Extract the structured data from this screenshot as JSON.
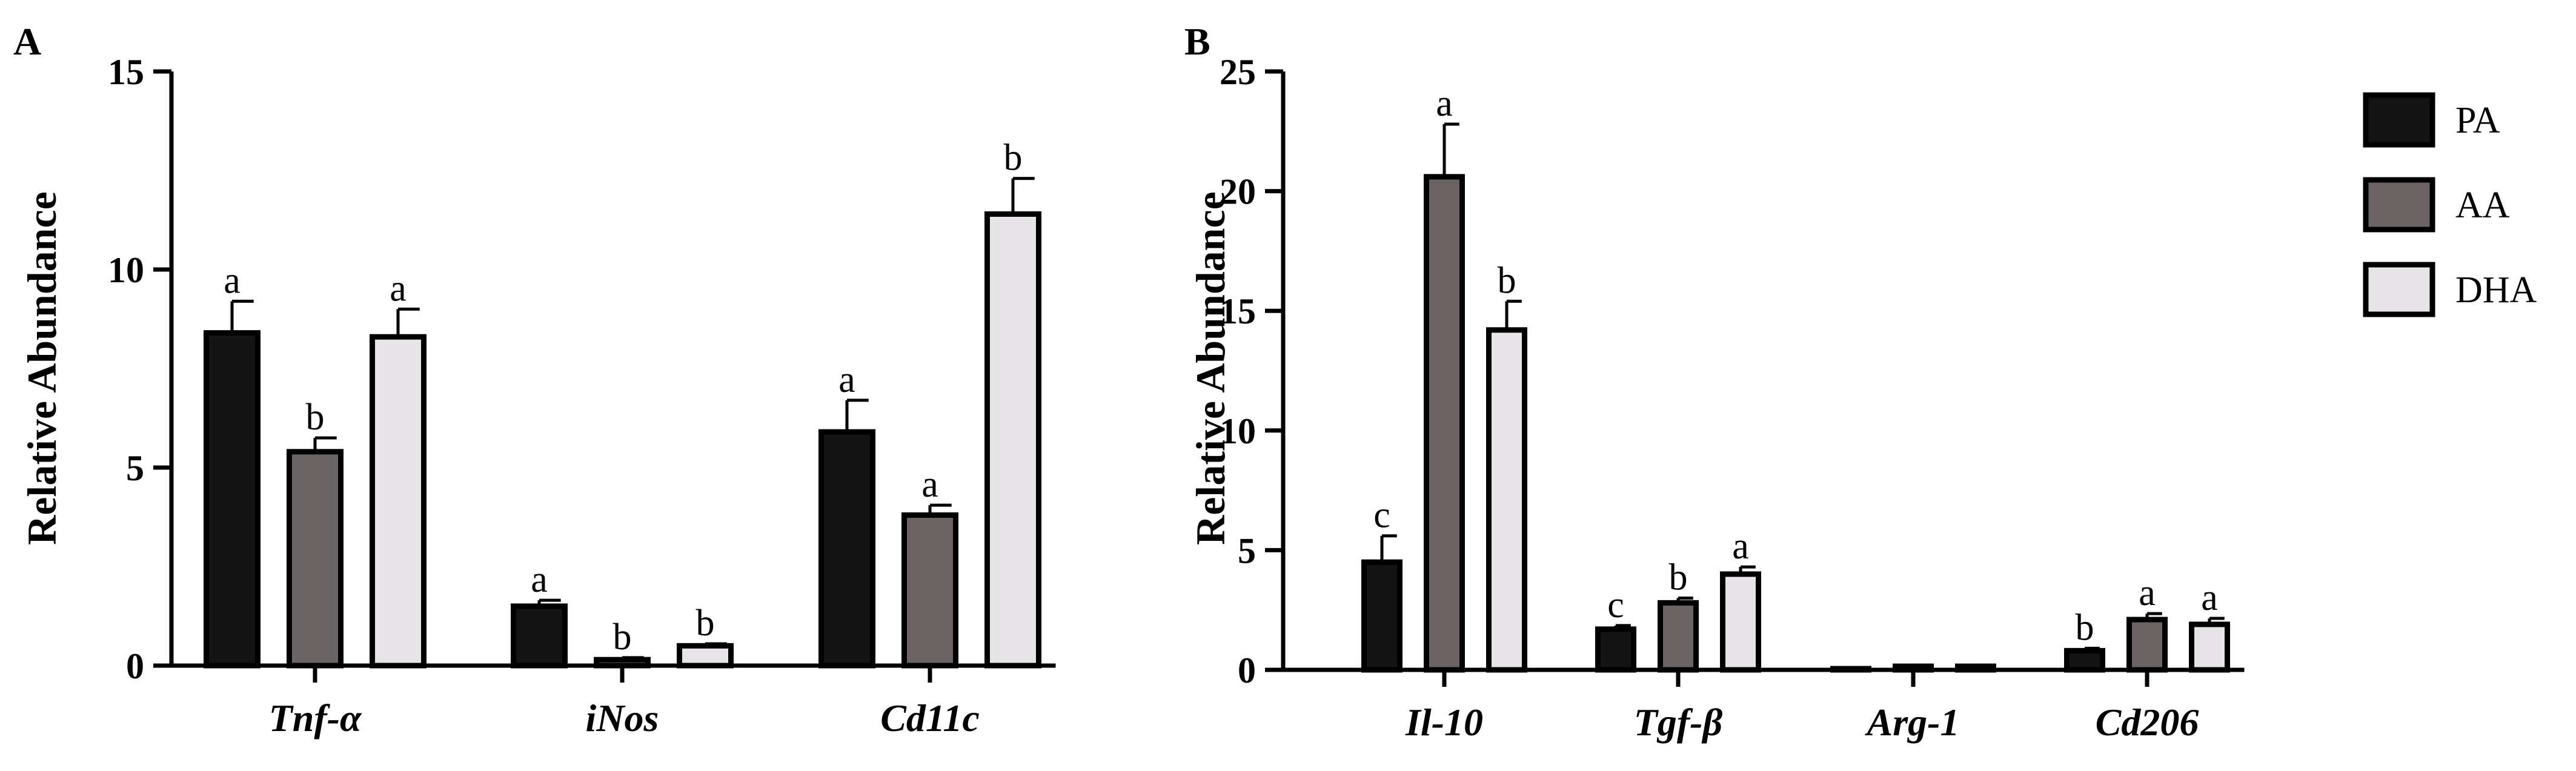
{
  "figure": {
    "colors": {
      "PA": "#141414",
      "AA": "#6b6464",
      "DHA": "#e7e5e8",
      "stroke": "#000000"
    }
  },
  "legend": {
    "entries": [
      {
        "name": "PA",
        "icon": "legend-swatch-pa"
      },
      {
        "name": "AA",
        "icon": "legend-swatch-aa"
      },
      {
        "name": "DHA",
        "icon": "legend-swatch-dha"
      }
    ]
  },
  "chart_data": [
    {
      "type": "bar",
      "panel": "A",
      "title": "",
      "xlabel": "",
      "ylabel": "Relative Abundance",
      "ylim": [
        0,
        15
      ],
      "yticks": [
        "0",
        "5",
        "10",
        "15"
      ],
      "categories": [
        "Tnf-α",
        "iNos",
        "Cd11c"
      ],
      "series": [
        {
          "name": "PA",
          "values": [
            8.4,
            1.5,
            5.9
          ],
          "errors": [
            0.8,
            0.15,
            0.8
          ],
          "sig": [
            "a",
            "a",
            "a"
          ]
        },
        {
          "name": "AA",
          "values": [
            5.4,
            0.15,
            3.8
          ],
          "errors": [
            0.35,
            0.05,
            0.25
          ],
          "sig": [
            "b",
            "b",
            "a"
          ]
        },
        {
          "name": "DHA",
          "values": [
            8.3,
            0.5,
            11.4
          ],
          "errors": [
            0.7,
            0.05,
            0.9
          ],
          "sig": [
            "a",
            "b",
            "b"
          ]
        }
      ]
    },
    {
      "type": "bar",
      "panel": "B",
      "title": "",
      "xlabel": "",
      "ylabel": "Relative Abundance",
      "ylim": [
        0,
        25
      ],
      "yticks": [
        "0",
        "5",
        "10",
        "15",
        "20",
        "25"
      ],
      "categories": [
        "Il-10",
        "Tgf-β",
        "Arg-1",
        "Cd206"
      ],
      "series": [
        {
          "name": "PA",
          "values": [
            4.5,
            1.7,
            0.05,
            0.8
          ],
          "errors": [
            1.1,
            0.15,
            0.03,
            0.1
          ],
          "sig": [
            "c",
            "c",
            "",
            "b"
          ]
        },
        {
          "name": "AA",
          "values": [
            20.6,
            2.8,
            0.15,
            2.1
          ],
          "errors": [
            2.2,
            0.2,
            0.05,
            0.25
          ],
          "sig": [
            "a",
            "b",
            "",
            "a"
          ]
        },
        {
          "name": "DHA",
          "values": [
            14.2,
            4.0,
            0.15,
            1.9
          ],
          "errors": [
            1.2,
            0.3,
            0.05,
            0.25
          ],
          "sig": [
            "b",
            "a",
            "",
            "a"
          ]
        }
      ]
    }
  ]
}
